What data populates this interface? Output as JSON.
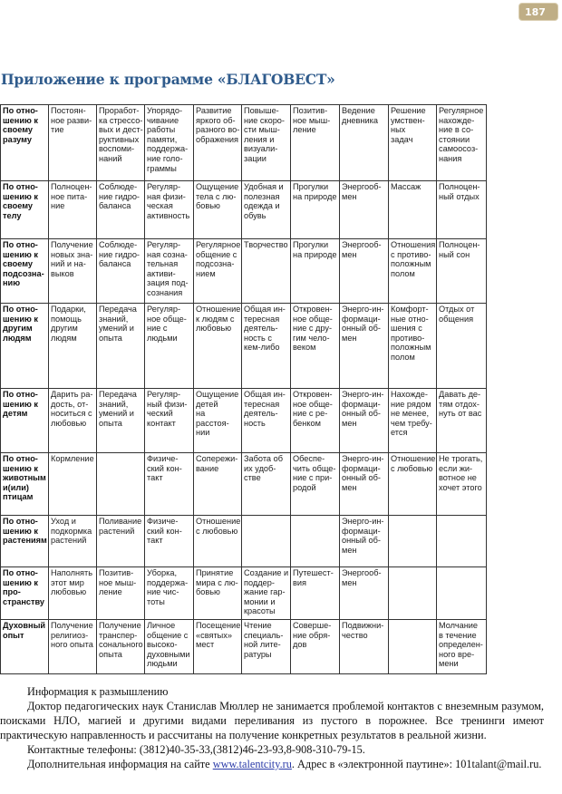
{
  "page_number": "187",
  "title": "Приложение к программе «БЛАГОВЕСТ»",
  "table": {
    "rows": [
      {
        "cells": [
          "По отно-\nшению к\nсвоему\nразуму",
          "Постоян-\nное разви-\nтие",
          "Проработ-\nка стрессо-\nвых и дест-\nруктивных\nвоспоми-\nнаний",
          "Упорядо-\nчивание\nработы\nпамяти,\nподдержа-\nние голо-\nграммы",
          "Развитие\nяркого об-\nразного во-\nображения",
          "Повыше-\nние скоро-\nсти мыш-\nления и\nвизуали-\nзации",
          "Позитив-\nное мыш-\nление",
          "Ведение\nдневника",
          "Решение\nумствен-\nных\nзадач",
          "Регулярное\nнахожде-\nние в со-\nстоянии\nсамоосоз-\nнания"
        ]
      },
      {
        "cells": [
          "По отно-\nшению к\nсвоему\nтелу",
          "Полноцен-\nное пита-\nние",
          "Соблюде-\nние гидро-\nбаланса",
          "Регуляр-\nная физи-\nческая\nактивность",
          "Ощущение\nтела с лю-\nбовью",
          "Удобная и\nполезная\nодежда и\nобувь",
          "Прогулки\nна природе",
          "Энергооб-\nмен",
          "Массаж",
          "Полноцен-\nный отдых"
        ]
      },
      {
        "cells": [
          "По отно-\nшению к\nсвоему\nподсозна-\nнию",
          "Получение\nновых зна-\nний и на-\nвыков",
          "Соблюде-\nние гидро-\nбаланса",
          "Регуляр-\nная созна-\nтельная\nактиви-\nзация под-\nсознания",
          "Регулярное\nобщение с\nподсозна-\nнием",
          "Творчество",
          "Прогулки\nна природе",
          "Энергооб-\nмен",
          "Отношения\nс противо-\nположным\nполом",
          "Полноцен-\nный сон"
        ]
      },
      {
        "cells": [
          "По отно-\nшению к\nдругим\nлюдям",
          "Подарки,\nпомощь\nдругим\nлюдям",
          "Передача\nзнаний,\nумений и\nопыта",
          "Регуляр-\nное обще-\nние с\nлюдьми",
          "Отношение\nк людям с\nлюбовью",
          "Общая ин-\nтересная\nдеятель-\nность с\nкем-либо",
          "Откровен-\nное обще-\nние с дру-\nгим чело-\nвеком",
          "Энерго-ин-\nформаци-\nонный об-\nмен",
          "Комфорт-\nные отно-\nшения с\nпротиво-\nположным\nполом",
          "Отдых от\nобщения"
        ]
      },
      {
        "cells": [
          "По отно-\nшению к\nдетям",
          "Дарить ра-\nдость, от-\nноситься с\nлюбовью",
          "Передача\nзнаний,\nумений и\nопыта",
          "Регуляр-\nный физи-\nческий\nконтакт",
          "Ощущение\nдетей\nна расстоя-\nнии",
          "Общая ин-\nтересная\nдеятель-\nность",
          "Откровен-\nное обще-\nние с ре-\nбенком",
          "Энерго-ин-\nформаци-\nонный об-\nмен",
          "Нахожде-\nние рядом\nне менее,\nчем требу-\nется",
          "Давать де-\nтям отдох-\nнуть от вас"
        ]
      },
      {
        "cells": [
          "По отно-\nшению к\nживотным\nи(или)\nптицам",
          "Кормление",
          "",
          "Физиче-\nский кон-\nтакт",
          "Сопережи-\nвание",
          "Забота об\nих удоб-\nстве",
          "Обеспе-\nчить обще-\nние с при-\nродой",
          "Энерго-ин-\nформаци-\nонный об-\nмен",
          "Отношение\nс любовью",
          "Не трогать,\nесли жи-\nвотное не\nхочет этого"
        ]
      },
      {
        "cells": [
          "По отно-\nшению к\nрастениям",
          "Уход и\nподкормка\nрастений",
          "Поливание\nрастений",
          "Физиче-\nский кон-\nтакт",
          "Отношение\nс любовью",
          "",
          "",
          "Энерго-ин-\nформаци-\nонный об-\nмен",
          "",
          ""
        ]
      },
      {
        "cells": [
          "По отно-\nшению к\nпро-\nстранству",
          "Наполнять\nэтот мир\nлюбовью",
          "Позитив-\nное мыш-\nление",
          "Уборка,\nподдержа-\nние чис-\nтоты",
          "Принятие\nмира с лю-\nбовью",
          "Создание и\nподдер-\nжание гар-\nмонии и\nкрасоты",
          "Путешест-\nвия",
          "Энергооб-\nмен",
          "",
          ""
        ]
      },
      {
        "cells": [
          "Духовный\nопыт",
          "Получение\nрелигиоз-\nного опыта",
          "Получение\nтранспер-\nсонального\nопыта",
          "Личное\nобщение с\nвысоко-\nдуховными\nлюдьми",
          "Посещение\n«святых»\nмест",
          "Чтение\nспециаль-\nной лите-\nратуры",
          "Соверше-\nние обря-\nдов",
          "Подвижни-\nчество",
          "",
          "Молчание\nв течение\nопределен-\nного вре-\nмени"
        ]
      }
    ]
  },
  "text": {
    "heading": "Информация к размышлению",
    "paragraph": "Доктор педагогических наук Станислав Мюллер не занимается проблемой контактов с внеземным разумом, поисками НЛО, магией и другими видами переливания из пустого в порожнее. Все тренинги имеют практическую направленность и рассчитаны на получение конкретных результатов в реальной жизни.",
    "phones": "Контактные телефоны: (3812)40-35-33,(3812)46-23-93,8-908-310-79-15.",
    "more_info_prefix": "Дополнительная информация на сайте ",
    "site_link": "www.talentcity.ru",
    "more_info_suffix": ". Адрес в «электронной паутине»: 101talant@mail.ru."
  }
}
